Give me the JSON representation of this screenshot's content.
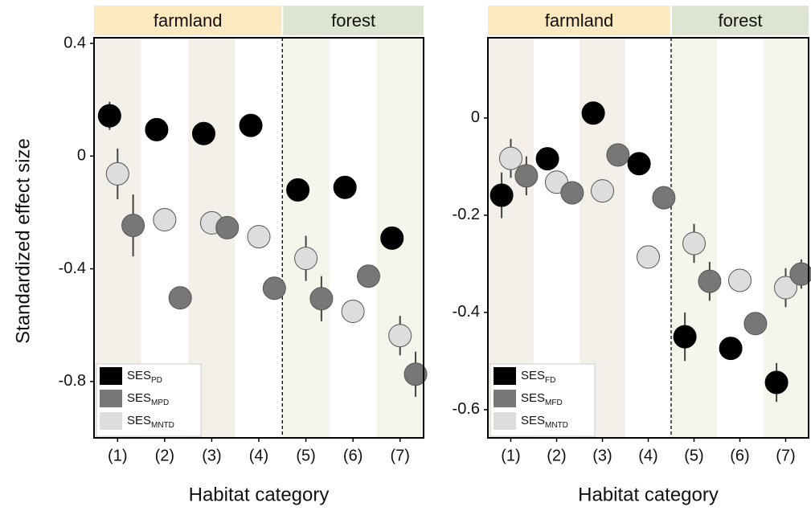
{
  "chart_data": [
    {
      "type": "scatter",
      "ylabel": "Standardized effect size",
      "xlabel": "Habitat category",
      "categories": [
        "(1)",
        "(2)",
        "(3)",
        "(4)",
        "(5)",
        "(6)",
        "(7)"
      ],
      "groups": [
        "farmland",
        "farmland",
        "farmland",
        "farmland",
        "forest",
        "forest",
        "forest"
      ],
      "group_colors": {
        "farmland": "#fde9c0",
        "forest": "#dde5d2"
      },
      "band_colors": [
        "#f3efe9",
        "#ffffff",
        "#f3efe9",
        "#ffffff",
        "#f4f6ec",
        "#ffffff",
        "#f4f6ec"
      ],
      "ylim": [
        -1.0,
        0.42
      ],
      "yticks": [
        0.4,
        0,
        -0.4,
        -0.8
      ],
      "legend": "lower left",
      "series": [
        {
          "name": "SES",
          "subscript": "PD",
          "color": "#000000",
          "values": [
            0.143,
            0.094,
            0.08,
            0.109,
            -0.12,
            -0.111,
            -0.291
          ],
          "errors": [
            0.05,
            0.01,
            0.01,
            0.01,
            0.02,
            0.01,
            0.01
          ]
        },
        {
          "name": "SES",
          "subscript": "MPD",
          "color": "#777777",
          "values": [
            -0.246,
            -0.503,
            -0.254,
            -0.469,
            -0.506,
            -0.426,
            -0.774
          ],
          "errors": [
            0.11,
            0.01,
            0.01,
            0.02,
            0.08,
            0.01,
            0.08
          ]
        },
        {
          "name": "SES",
          "subscript": "MNTD",
          "color": "#dddddd",
          "values": [
            -0.063,
            -0.226,
            -0.237,
            -0.286,
            -0.363,
            -0.551,
            -0.637
          ],
          "errors": [
            0.09,
            0.02,
            0.01,
            0.02,
            0.08,
            0.01,
            0.07
          ]
        }
      ]
    },
    {
      "type": "scatter",
      "xlabel": "Habitat category",
      "categories": [
        "(1)",
        "(2)",
        "(3)",
        "(4)",
        "(5)",
        "(6)",
        "(7)"
      ],
      "groups": [
        "farmland",
        "farmland",
        "farmland",
        "farmland",
        "forest",
        "forest",
        "forest"
      ],
      "group_colors": {
        "farmland": "#fde9c0",
        "forest": "#dde5d2"
      },
      "band_colors": [
        "#f3efe9",
        "#ffffff",
        "#f3efe9",
        "#ffffff",
        "#f4f6ec",
        "#ffffff",
        "#f4f6ec"
      ],
      "ylim": [
        -0.658,
        0.165
      ],
      "yticks": [
        0,
        -0.2,
        -0.4,
        -0.6
      ],
      "legend": "lower left",
      "series": [
        {
          "name": "SES",
          "subscript": "FD",
          "color": "#000000",
          "values": [
            -0.159,
            -0.084,
            0.01,
            -0.094,
            -0.45,
            -0.474,
            -0.544
          ],
          "errors": [
            0.047,
            0.01,
            0.01,
            0.01,
            0.05,
            0.01,
            0.04
          ]
        },
        {
          "name": "SES",
          "subscript": "MFD",
          "color": "#777777",
          "values": [
            -0.119,
            -0.154,
            -0.076,
            -0.164,
            -0.336,
            -0.423,
            -0.321
          ],
          "errors": [
            0.04,
            0.01,
            0.01,
            0.01,
            0.04,
            0.01,
            0.03
          ]
        },
        {
          "name": "SES",
          "subscript": "MNTD",
          "color": "#dddddd",
          "values": [
            -0.083,
            -0.132,
            -0.15,
            -0.286,
            -0.258,
            -0.334,
            -0.349
          ],
          "errors": [
            0.04,
            0.01,
            0.01,
            0.01,
            0.04,
            0.01,
            0.04
          ]
        }
      ]
    }
  ]
}
